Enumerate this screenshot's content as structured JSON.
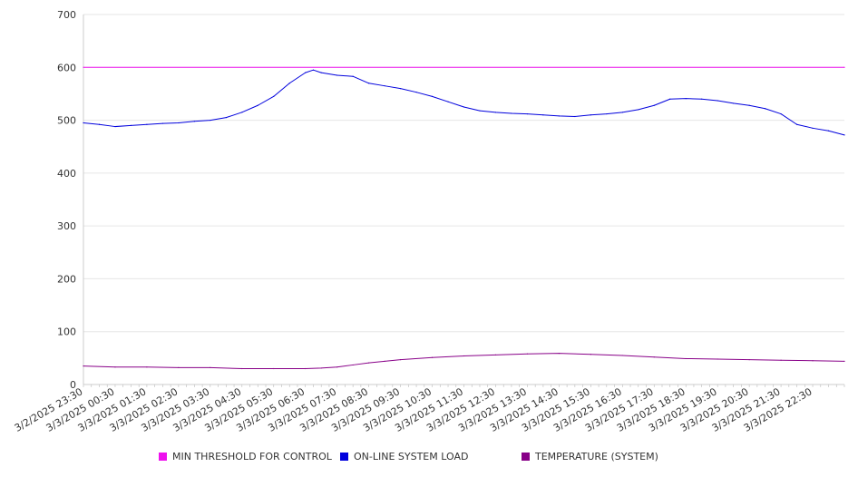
{
  "chart_data": {
    "type": "line",
    "title": "",
    "xlabel": "",
    "ylabel": "",
    "ylim": [
      0,
      700
    ],
    "yticks": [
      "0",
      "100",
      "200",
      "300",
      "400",
      "500",
      "600",
      "700"
    ],
    "grid": "horizontal",
    "legend_position": "bottom",
    "x_tick_labels": [
      "3/2/2025 23:30",
      "3/3/2025 00:30",
      "3/3/2025 01:30",
      "3/3/2025 02:30",
      "3/3/2025 03:30",
      "3/3/2025 04:30",
      "3/3/2025 05:30",
      "3/3/2025 06:30",
      "3/3/2025 07:30",
      "3/3/2025 08:30",
      "3/3/2025 09:30",
      "3/3/2025 10:30",
      "3/3/2025 11:30",
      "3/3/2025 12:30",
      "3/3/2025 13:30",
      "3/3/2025 14:30",
      "3/3/2025 15:30",
      "3/3/2025 16:30",
      "3/3/2025 17:30",
      "3/3/2025 18:30",
      "3/3/2025 19:30",
      "3/3/2025 20:30",
      "3/3/2025 21:30",
      "3/3/2025 22:30"
    ],
    "x_range_hours": [
      0,
      24
    ],
    "series": [
      {
        "name": "MIN THRESHOLD FOR CONTROL",
        "color": "#ee11ee",
        "x": [
          0,
          24
        ],
        "values": [
          600,
          600
        ]
      },
      {
        "name": "ON-LINE SYSTEM LOAD",
        "color": "#0000dd",
        "x": [
          0,
          0.5,
          1,
          1.5,
          2,
          2.5,
          3,
          3.5,
          4,
          4.5,
          5,
          5.5,
          6,
          6.5,
          7,
          7.25,
          7.5,
          8,
          8.5,
          9,
          9.5,
          10,
          10.5,
          11,
          11.5,
          12,
          12.5,
          13,
          13.5,
          14,
          14.5,
          15,
          15.5,
          16,
          16.5,
          17,
          17.5,
          18,
          18.5,
          19,
          19.5,
          20,
          20.5,
          21,
          21.5,
          22,
          22.5,
          23,
          23.5,
          24
        ],
        "values": [
          495,
          492,
          488,
          490,
          492,
          494,
          495,
          498,
          500,
          505,
          515,
          528,
          545,
          570,
          590,
          595,
          590,
          585,
          583,
          570,
          565,
          560,
          553,
          545,
          535,
          525,
          518,
          515,
          513,
          512,
          510,
          508,
          507,
          510,
          512,
          515,
          520,
          528,
          540,
          541,
          540,
          537,
          532,
          528,
          522,
          512,
          492,
          485,
          480,
          472
        ]
      },
      {
        "name": "TEMPERATURE (SYSTEM)",
        "color": "#880088",
        "x": [
          0,
          1,
          2,
          3,
          4,
          5,
          6,
          7,
          7.5,
          8,
          8.5,
          9,
          9.5,
          10,
          11,
          12,
          13,
          14,
          15,
          16,
          17,
          18,
          19,
          20,
          21,
          22,
          23,
          24
        ],
        "values": [
          35,
          33,
          33,
          32,
          32,
          30,
          30,
          30,
          31,
          33,
          37,
          41,
          44,
          47,
          51,
          54,
          56,
          58,
          59,
          57,
          55,
          52,
          49,
          48,
          47,
          46,
          45,
          44
        ]
      }
    ]
  }
}
